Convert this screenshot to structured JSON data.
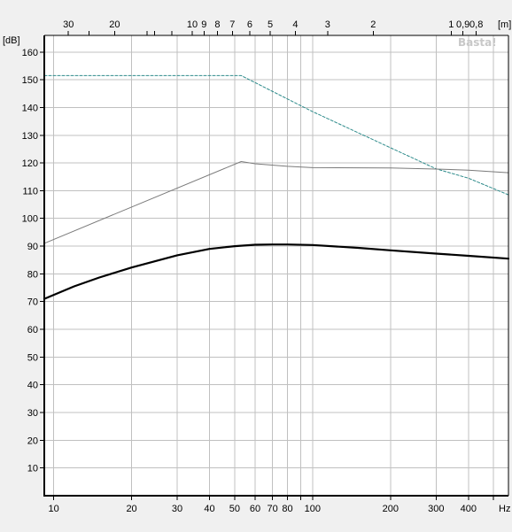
{
  "chart_data": {
    "type": "line",
    "y_unit_label": "[dB]",
    "ylim": [
      0,
      166
    ],
    "yticks": [
      10,
      20,
      30,
      40,
      50,
      60,
      70,
      80,
      90,
      100,
      110,
      120,
      130,
      140,
      150,
      160
    ],
    "x_scale": "log",
    "xlim": [
      9.2,
      571
    ],
    "x_unit_label": "Hz",
    "xticks": [
      {
        "value": 10,
        "label": "10"
      },
      {
        "value": 20,
        "label": "20"
      },
      {
        "value": 30,
        "label": "30"
      },
      {
        "value": 40,
        "label": "40"
      },
      {
        "value": 50,
        "label": "50"
      },
      {
        "value": 60,
        "label": "60"
      },
      {
        "value": 70,
        "label": "70"
      },
      {
        "value": 80,
        "label": "80"
      },
      {
        "value": 100,
        "label": "100"
      },
      {
        "value": 200,
        "label": "200"
      },
      {
        "value": 300,
        "label": "300"
      },
      {
        "value": 400,
        "label": "400"
      }
    ],
    "x_minor": [
      90,
      500
    ],
    "wavelength_unit_label": "[m]",
    "wavelength_ticks": [
      {
        "freq": 11.4,
        "label": "30"
      },
      {
        "freq": 17.2,
        "label": "20"
      },
      {
        "freq": 34.3,
        "label": "10"
      },
      {
        "freq": 38.1,
        "label": "9"
      },
      {
        "freq": 42.9,
        "label": "8"
      },
      {
        "freq": 49.0,
        "label": "7"
      },
      {
        "freq": 57.2,
        "label": "6"
      },
      {
        "freq": 68.6,
        "label": "5"
      },
      {
        "freq": 85.8,
        "label": "4"
      },
      {
        "freq": 114.3,
        "label": "3"
      },
      {
        "freq": 171.5,
        "label": "2"
      },
      {
        "freq": 343,
        "label": "1"
      },
      {
        "freq": 381,
        "label": "0,9"
      },
      {
        "freq": 429,
        "label": "0,8"
      }
    ],
    "wavelength_minor": [
      13.7,
      22.9,
      24.5,
      28.6
    ],
    "watermark": "Basta!",
    "grid": true,
    "series": [
      {
        "style": "dashed",
        "color": "#2e8b8b",
        "x": [
          9.2,
          53,
          100,
          200,
          300,
          400,
          571
        ],
        "y": [
          151.5,
          151.5,
          138.5,
          125.5,
          117.9,
          114.5,
          108.5
        ]
      },
      {
        "style": "thin",
        "color": "#7a7a7a",
        "x": [
          9.2,
          53,
          60,
          80,
          100,
          200,
          300,
          400,
          571
        ],
        "y": [
          91,
          120.5,
          119.7,
          118.8,
          118.3,
          118.2,
          117.8,
          117.4,
          116.5
        ]
      },
      {
        "style": "thick",
        "color": "#000000",
        "x": [
          9.2,
          12,
          15,
          20,
          30,
          40,
          50,
          60,
          70,
          80,
          100,
          150,
          200,
          300,
          400,
          571
        ],
        "y": [
          71,
          75.5,
          78.7,
          82.3,
          86.7,
          89,
          90,
          90.5,
          90.6,
          90.6,
          90.4,
          89.4,
          88.5,
          87.3,
          86.5,
          85.5
        ]
      }
    ]
  }
}
